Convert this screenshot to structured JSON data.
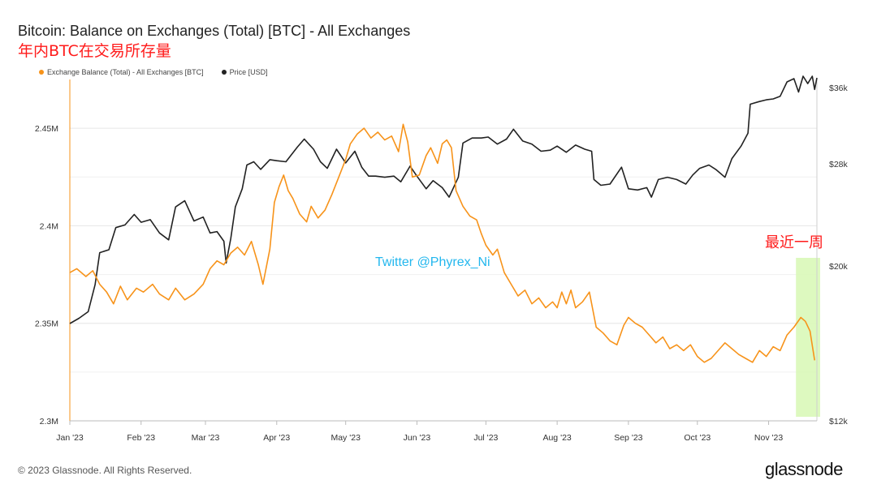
{
  "header": {
    "title": "Bitcoin: Balance on Exchanges (Total) [BTC] - All Exchanges",
    "subtitle": "年内BTC在交易所存量"
  },
  "footer": {
    "copyright": "© 2023 Glassnode. All Rights Reserved.",
    "brand": "glassnode"
  },
  "colors": {
    "balance": "#f7931a",
    "price": "#222222",
    "highlight": "#d9f8b8",
    "annotation": "#ff1a1a",
    "watermark": "#23b7ee"
  },
  "chart_data": {
    "type": "line",
    "title": "Bitcoin: Balance on Exchanges (Total) [BTC] - All Exchanges",
    "subtitle": "年内BTC在交易所存量",
    "legend_position": "top-left",
    "grid": true,
    "x_ticks": [
      "Jan '23",
      "Feb '23",
      "Mar '23",
      "Apr '23",
      "May '23",
      "Jun '23",
      "Jul '23",
      "Aug '23",
      "Sep '23",
      "Oct '23",
      "Nov '23"
    ],
    "y_left": {
      "ticks": [
        "2.3M",
        "2.35M",
        "2.4M",
        "2.45M"
      ],
      "range": [
        2300000,
        2475000
      ]
    },
    "y_right": {
      "ticks": [
        "$12k",
        "$20k",
        "$28k",
        "$36k"
      ],
      "range": [
        12000,
        37000
      ],
      "scale": "log"
    },
    "series": [
      {
        "name": "Exchange Balance (Total) - All Exchanges [BTC]",
        "axis": "left",
        "color": "#f7931a",
        "points": [
          [
            "2023-01-01",
            2376000
          ],
          [
            "2023-01-04",
            2378000
          ],
          [
            "2023-01-08",
            2374000
          ],
          [
            "2023-01-11",
            2377000
          ],
          [
            "2023-01-14",
            2370000
          ],
          [
            "2023-01-17",
            2366000
          ],
          [
            "2023-01-20",
            2360000
          ],
          [
            "2023-01-23",
            2369000
          ],
          [
            "2023-01-26",
            2362000
          ],
          [
            "2023-01-30",
            2368000
          ],
          [
            "2023-02-02",
            2366000
          ],
          [
            "2023-02-06",
            2370000
          ],
          [
            "2023-02-09",
            2365000
          ],
          [
            "2023-02-13",
            2362000
          ],
          [
            "2023-02-16",
            2368000
          ],
          [
            "2023-02-20",
            2362000
          ],
          [
            "2023-02-24",
            2365000
          ],
          [
            "2023-02-28",
            2370000
          ],
          [
            "2023-03-03",
            2378000
          ],
          [
            "2023-03-06",
            2382000
          ],
          [
            "2023-03-09",
            2380000
          ],
          [
            "2023-03-12",
            2386000
          ],
          [
            "2023-03-15",
            2389000
          ],
          [
            "2023-03-18",
            2385000
          ],
          [
            "2023-03-21",
            2392000
          ],
          [
            "2023-03-24",
            2380000
          ],
          [
            "2023-03-26",
            2370000
          ],
          [
            "2023-03-29",
            2388000
          ],
          [
            "2023-03-31",
            2412000
          ],
          [
            "2023-04-02",
            2420000
          ],
          [
            "2023-04-04",
            2426000
          ],
          [
            "2023-04-06",
            2418000
          ],
          [
            "2023-04-08",
            2414000
          ],
          [
            "2023-04-11",
            2406000
          ],
          [
            "2023-04-14",
            2402000
          ],
          [
            "2023-04-16",
            2410000
          ],
          [
            "2023-04-19",
            2404000
          ],
          [
            "2023-04-22",
            2408000
          ],
          [
            "2023-04-25",
            2416000
          ],
          [
            "2023-04-28",
            2425000
          ],
          [
            "2023-05-01",
            2434000
          ],
          [
            "2023-05-03",
            2442000
          ],
          [
            "2023-05-06",
            2447000
          ],
          [
            "2023-05-09",
            2450000
          ],
          [
            "2023-05-12",
            2445000
          ],
          [
            "2023-05-15",
            2448000
          ],
          [
            "2023-05-18",
            2444000
          ],
          [
            "2023-05-21",
            2446000
          ],
          [
            "2023-05-24",
            2438000
          ],
          [
            "2023-05-26",
            2452000
          ],
          [
            "2023-05-28",
            2443000
          ],
          [
            "2023-05-30",
            2425000
          ],
          [
            "2023-06-02",
            2426000
          ],
          [
            "2023-06-05",
            2436000
          ],
          [
            "2023-06-07",
            2440000
          ],
          [
            "2023-06-10",
            2432000
          ],
          [
            "2023-06-12",
            2442000
          ],
          [
            "2023-06-14",
            2444000
          ],
          [
            "2023-06-16",
            2440000
          ],
          [
            "2023-06-18",
            2418000
          ],
          [
            "2023-06-21",
            2410000
          ],
          [
            "2023-06-24",
            2405000
          ],
          [
            "2023-06-27",
            2403000
          ],
          [
            "2023-06-29",
            2396000
          ],
          [
            "2023-07-01",
            2390000
          ],
          [
            "2023-07-04",
            2385000
          ],
          [
            "2023-07-06",
            2388000
          ],
          [
            "2023-07-09",
            2376000
          ],
          [
            "2023-07-12",
            2370000
          ],
          [
            "2023-07-15",
            2364000
          ],
          [
            "2023-07-18",
            2367000
          ],
          [
            "2023-07-21",
            2360000
          ],
          [
            "2023-07-24",
            2363000
          ],
          [
            "2023-07-27",
            2358000
          ],
          [
            "2023-07-30",
            2361000
          ],
          [
            "2023-08-01",
            2358000
          ],
          [
            "2023-08-03",
            2366000
          ],
          [
            "2023-08-05",
            2360000
          ],
          [
            "2023-08-07",
            2367000
          ],
          [
            "2023-08-09",
            2358000
          ],
          [
            "2023-08-12",
            2361000
          ],
          [
            "2023-08-15",
            2366000
          ],
          [
            "2023-08-18",
            2348000
          ],
          [
            "2023-08-21",
            2345000
          ],
          [
            "2023-08-24",
            2341000
          ],
          [
            "2023-08-27",
            2339000
          ],
          [
            "2023-08-30",
            2349000
          ],
          [
            "2023-09-01",
            2353000
          ],
          [
            "2023-09-04",
            2350000
          ],
          [
            "2023-09-07",
            2348000
          ],
          [
            "2023-09-10",
            2344000
          ],
          [
            "2023-09-13",
            2340000
          ],
          [
            "2023-09-16",
            2343000
          ],
          [
            "2023-09-19",
            2337000
          ],
          [
            "2023-09-22",
            2339000
          ],
          [
            "2023-09-25",
            2336000
          ],
          [
            "2023-09-28",
            2339000
          ],
          [
            "2023-10-01",
            2333000
          ],
          [
            "2023-10-04",
            2330000
          ],
          [
            "2023-10-07",
            2332000
          ],
          [
            "2023-10-10",
            2336000
          ],
          [
            "2023-10-13",
            2340000
          ],
          [
            "2023-10-16",
            2337000
          ],
          [
            "2023-10-19",
            2334000
          ],
          [
            "2023-10-22",
            2332000
          ],
          [
            "2023-10-25",
            2330000
          ],
          [
            "2023-10-28",
            2336000
          ],
          [
            "2023-10-31",
            2333000
          ],
          [
            "2023-11-03",
            2338000
          ],
          [
            "2023-11-06",
            2336000
          ],
          [
            "2023-11-09",
            2344000
          ],
          [
            "2023-11-12",
            2348000
          ],
          [
            "2023-11-15",
            2353000
          ],
          [
            "2023-11-17",
            2351000
          ],
          [
            "2023-11-19",
            2346000
          ],
          [
            "2023-11-21",
            2331000
          ]
        ]
      },
      {
        "name": "Price [USD]",
        "axis": "right",
        "color": "#222222",
        "points": [
          [
            "2023-01-01",
            16540
          ],
          [
            "2023-01-05",
            16830
          ],
          [
            "2023-01-09",
            17200
          ],
          [
            "2023-01-12",
            18800
          ],
          [
            "2023-01-14",
            20900
          ],
          [
            "2023-01-18",
            21100
          ],
          [
            "2023-01-21",
            22700
          ],
          [
            "2023-01-25",
            22900
          ],
          [
            "2023-01-29",
            23700
          ],
          [
            "2023-02-01",
            23100
          ],
          [
            "2023-02-05",
            23300
          ],
          [
            "2023-02-09",
            22300
          ],
          [
            "2023-02-13",
            21800
          ],
          [
            "2023-02-16",
            24300
          ],
          [
            "2023-02-20",
            24800
          ],
          [
            "2023-02-24",
            23200
          ],
          [
            "2023-02-28",
            23500
          ],
          [
            "2023-03-03",
            22300
          ],
          [
            "2023-03-06",
            22400
          ],
          [
            "2023-03-09",
            21700
          ],
          [
            "2023-03-10",
            20200
          ],
          [
            "2023-03-12",
            21900
          ],
          [
            "2023-03-14",
            24300
          ],
          [
            "2023-03-17",
            25800
          ],
          [
            "2023-03-19",
            27900
          ],
          [
            "2023-03-22",
            28200
          ],
          [
            "2023-03-25",
            27500
          ],
          [
            "2023-03-29",
            28400
          ],
          [
            "2023-04-01",
            28300
          ],
          [
            "2023-04-05",
            28200
          ],
          [
            "2023-04-10",
            29600
          ],
          [
            "2023-04-13",
            30400
          ],
          [
            "2023-04-17",
            29400
          ],
          [
            "2023-04-20",
            28200
          ],
          [
            "2023-04-23",
            27600
          ],
          [
            "2023-04-27",
            29400
          ],
          [
            "2023-05-01",
            28100
          ],
          [
            "2023-05-05",
            29200
          ],
          [
            "2023-05-08",
            27700
          ],
          [
            "2023-05-11",
            26900
          ],
          [
            "2023-05-14",
            26900
          ],
          [
            "2023-05-18",
            26800
          ],
          [
            "2023-05-22",
            26900
          ],
          [
            "2023-05-25",
            26400
          ],
          [
            "2023-05-29",
            27800
          ],
          [
            "2023-06-01",
            26900
          ],
          [
            "2023-06-05",
            25800
          ],
          [
            "2023-06-08",
            26500
          ],
          [
            "2023-06-12",
            25900
          ],
          [
            "2023-06-15",
            25100
          ],
          [
            "2023-06-19",
            26800
          ],
          [
            "2023-06-21",
            30000
          ],
          [
            "2023-06-25",
            30500
          ],
          [
            "2023-06-29",
            30500
          ],
          [
            "2023-07-02",
            30600
          ],
          [
            "2023-07-06",
            29900
          ],
          [
            "2023-07-10",
            30400
          ],
          [
            "2023-07-13",
            31400
          ],
          [
            "2023-07-17",
            30200
          ],
          [
            "2023-07-21",
            29900
          ],
          [
            "2023-07-25",
            29200
          ],
          [
            "2023-07-29",
            29300
          ],
          [
            "2023-08-01",
            29700
          ],
          [
            "2023-08-05",
            29100
          ],
          [
            "2023-08-09",
            29800
          ],
          [
            "2023-08-13",
            29400
          ],
          [
            "2023-08-16",
            29200
          ],
          [
            "2023-08-17",
            26600
          ],
          [
            "2023-08-20",
            26100
          ],
          [
            "2023-08-24",
            26200
          ],
          [
            "2023-08-29",
            27700
          ],
          [
            "2023-09-01",
            25800
          ],
          [
            "2023-09-05",
            25700
          ],
          [
            "2023-09-09",
            25900
          ],
          [
            "2023-09-11",
            25100
          ],
          [
            "2023-09-14",
            26600
          ],
          [
            "2023-09-18",
            26800
          ],
          [
            "2023-09-22",
            26600
          ],
          [
            "2023-09-26",
            26200
          ],
          [
            "2023-09-29",
            27000
          ],
          [
            "2023-10-02",
            27600
          ],
          [
            "2023-10-06",
            27900
          ],
          [
            "2023-10-09",
            27500
          ],
          [
            "2023-10-13",
            26800
          ],
          [
            "2023-10-16",
            28500
          ],
          [
            "2023-10-20",
            29700
          ],
          [
            "2023-10-23",
            31000
          ],
          [
            "2023-10-24",
            34100
          ],
          [
            "2023-10-28",
            34400
          ],
          [
            "2023-10-31",
            34600
          ],
          [
            "2023-11-03",
            34700
          ],
          [
            "2023-11-06",
            35000
          ],
          [
            "2023-11-09",
            36700
          ],
          [
            "2023-11-12",
            37100
          ],
          [
            "2023-11-14",
            35500
          ],
          [
            "2023-11-16",
            37400
          ],
          [
            "2023-11-18",
            36500
          ],
          [
            "2023-11-20",
            37400
          ],
          [
            "2023-11-21",
            35800
          ],
          [
            "2023-11-22",
            37200
          ]
        ]
      }
    ],
    "annotations": [
      {
        "type": "watermark",
        "text": "Twitter @Phyrex_Ni"
      },
      {
        "type": "label",
        "text": "最近一周"
      },
      {
        "type": "highlight-band",
        "x_range": [
          "2023-11-15",
          "2023-11-22"
        ]
      }
    ]
  }
}
